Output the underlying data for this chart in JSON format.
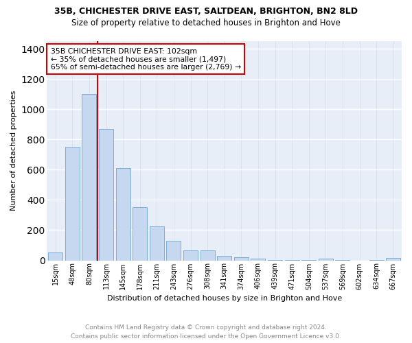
{
  "title1": "35B, CHICHESTER DRIVE EAST, SALTDEAN, BRIGHTON, BN2 8LD",
  "title2": "Size of property relative to detached houses in Brighton and Hove",
  "xlabel": "Distribution of detached houses by size in Brighton and Hove",
  "ylabel": "Number of detached properties",
  "footer1": "Contains HM Land Registry data © Crown copyright and database right 2024.",
  "footer2": "Contains public sector information licensed under the Open Government Licence v3.0.",
  "categories": [
    "15sqm",
    "48sqm",
    "80sqm",
    "113sqm",
    "145sqm",
    "178sqm",
    "211sqm",
    "243sqm",
    "276sqm",
    "308sqm",
    "341sqm",
    "374sqm",
    "406sqm",
    "439sqm",
    "471sqm",
    "504sqm",
    "537sqm",
    "569sqm",
    "602sqm",
    "634sqm",
    "667sqm"
  ],
  "values": [
    50,
    750,
    1100,
    870,
    610,
    350,
    225,
    130,
    65,
    65,
    30,
    20,
    10,
    2,
    2,
    1,
    10,
    1,
    0,
    1,
    15
  ],
  "bar_color": "#c5d8f0",
  "bar_edge_color": "#7bafd4",
  "bg_color": "#e8eef8",
  "grid_color": "#d0d8e8",
  "red_line_x": 2.5,
  "annotation_line1": "35B CHICHESTER DRIVE EAST: 102sqm",
  "annotation_line2": "← 35% of detached houses are smaller (1,497)",
  "annotation_line3": "65% of semi-detached houses are larger (2,769) →",
  "annotation_box_color": "#ffffff",
  "annotation_border_color": "#cc0000",
  "ylim": [
    0,
    1450
  ],
  "yticks": [
    0,
    200,
    400,
    600,
    800,
    1000,
    1200,
    1400
  ]
}
